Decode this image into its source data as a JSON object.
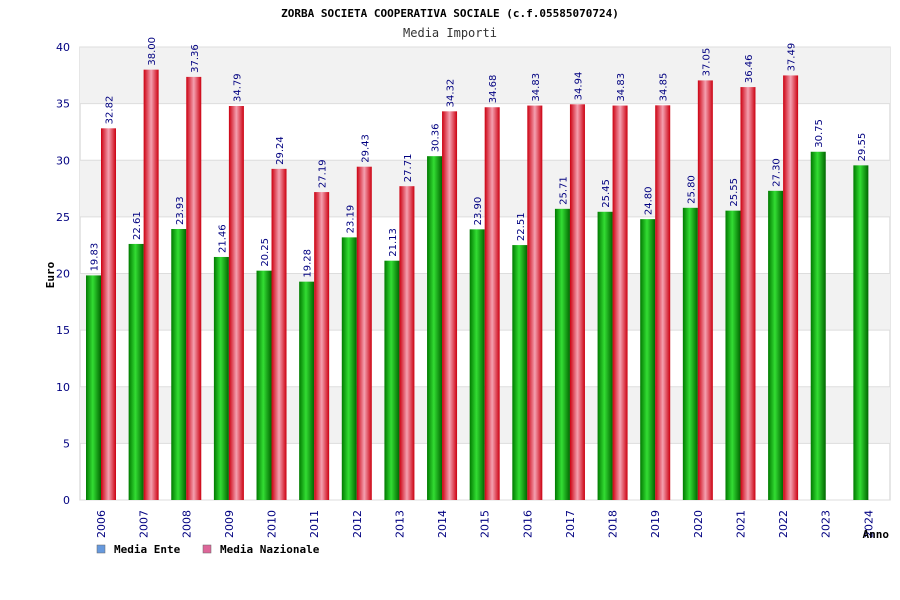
{
  "chart_data": {
    "type": "bar",
    "title": "ZORBA SOCIETA COOPERATIVA SOCIALE (c.f.05585070724)",
    "subtitle": "Media Importi",
    "xlabel": "Anno",
    "ylabel": "Euro",
    "ylim": [
      0,
      40
    ],
    "yticks": [
      0,
      5,
      10,
      15,
      20,
      25,
      30,
      35,
      40
    ],
    "grid": true,
    "legend_position": "bottom-left",
    "categories": [
      "2006",
      "2007",
      "2008",
      "2009",
      "2010",
      "2011",
      "2012",
      "2013",
      "2014",
      "2015",
      "2016",
      "2017",
      "2018",
      "2019",
      "2020",
      "2021",
      "2022",
      "2023",
      "2024"
    ],
    "series": [
      {
        "name": "Media Ente",
        "legend_color": "#6699dd",
        "bar_color": "#00aa00",
        "values": [
          19.83,
          22.61,
          23.93,
          21.46,
          20.25,
          19.28,
          23.19,
          21.13,
          30.36,
          23.9,
          22.51,
          25.71,
          25.45,
          24.8,
          25.8,
          25.55,
          27.3,
          30.75,
          29.55
        ],
        "labels": [
          "19.83",
          "22.61",
          "23.93",
          "21.46",
          "20.25",
          "19.28",
          "23.19",
          "21.13",
          "30.36",
          "23.90",
          "22.51",
          "25.71",
          "25.45",
          "24.80",
          "25.80",
          "25.55",
          "27.30",
          "30.75",
          "29.55"
        ]
      },
      {
        "name": "Media Nazionale",
        "legend_color": "#dd6699",
        "bar_color": "#dd0022",
        "values": [
          32.82,
          38.0,
          37.36,
          34.79,
          29.24,
          27.19,
          29.43,
          27.71,
          34.32,
          34.68,
          34.83,
          34.94,
          34.83,
          34.85,
          37.05,
          36.46,
          37.49,
          null,
          null
        ],
        "labels": [
          "32.82",
          "38.00",
          "37.36",
          "34.79",
          "29.24",
          "27.19",
          "29.43",
          "27.71",
          "34.32",
          "34.68",
          "34.83",
          "34.94",
          "34.83",
          "34.85",
          "37.05",
          "36.46",
          "37.49",
          null,
          null
        ]
      }
    ]
  }
}
